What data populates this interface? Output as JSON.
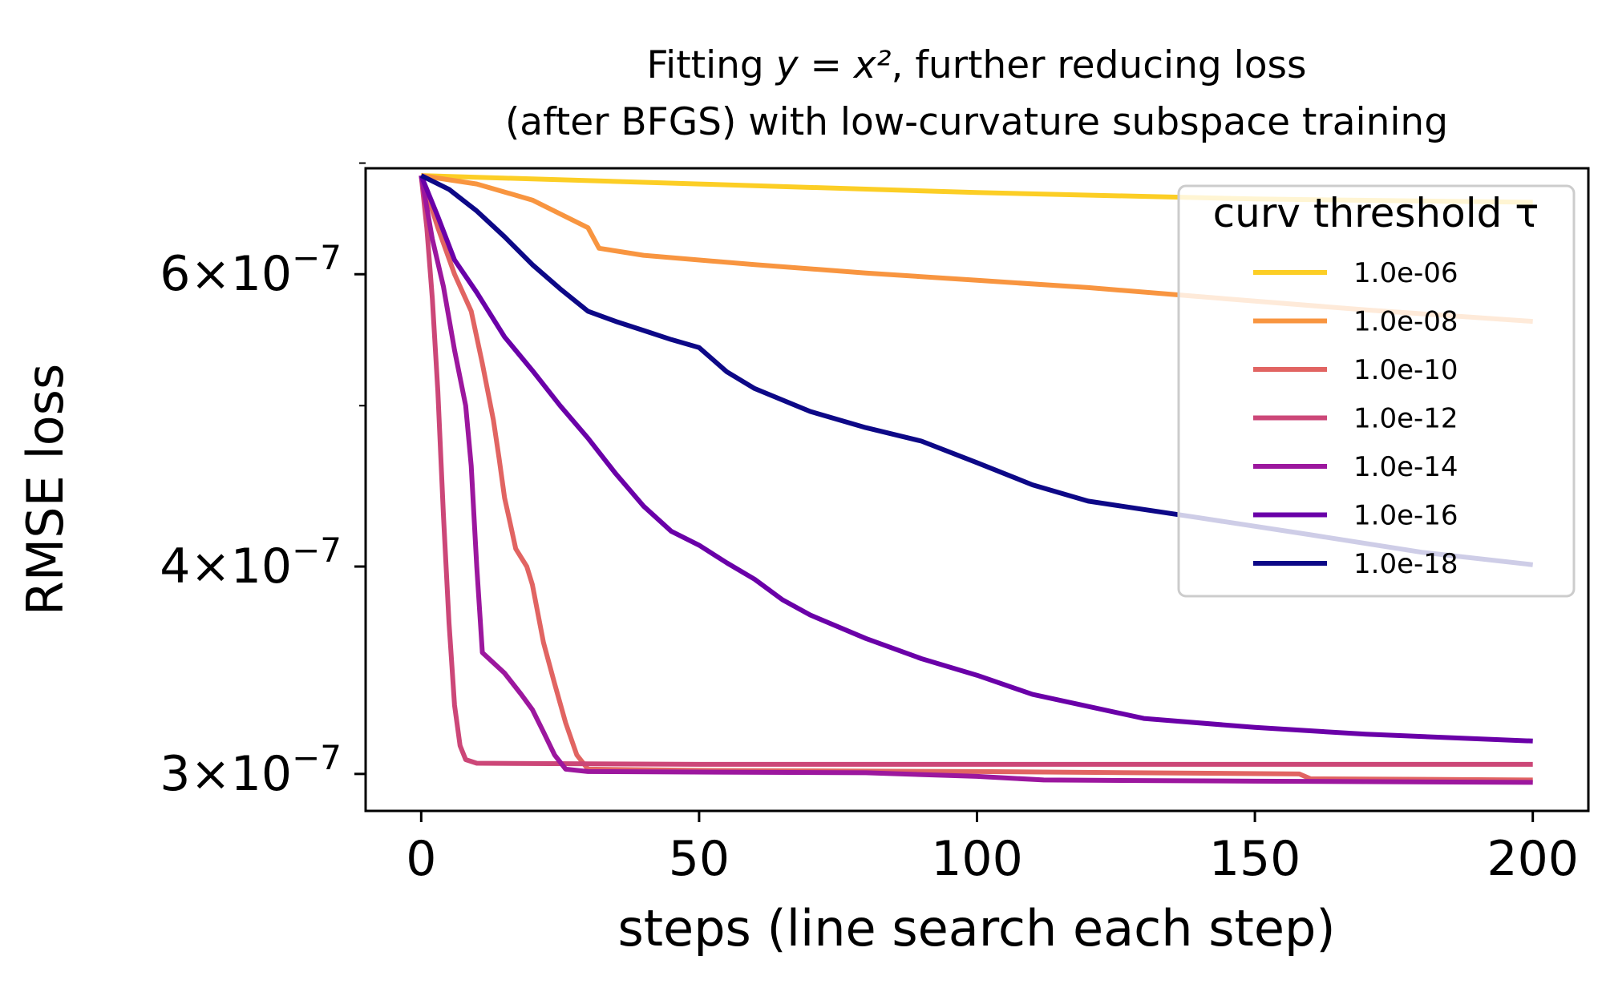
{
  "chart_data": {
    "type": "line",
    "title": "Fitting y = x², further reducing loss (after BFGS) with low-curvature subspace training",
    "title_line1_prefix": "Fitting ",
    "title_line1_math": "y = x²",
    "title_line1_suffix": ", further reducing loss",
    "title_line2": "(after BFGS) with low-curvature subspace training",
    "xlabel": "steps (line search each step)",
    "ylabel": "RMSE loss",
    "yscale": "log",
    "xlim": [
      -10,
      210
    ],
    "ylim": [
      2.85e-07,
      6.95e-07
    ],
    "x_ticks": [
      0,
      50,
      100,
      150,
      200
    ],
    "x_tick_labels": [
      "0",
      "50",
      "100",
      "150",
      "200"
    ],
    "y_ticks": [
      3e-07,
      4e-07,
      6e-07
    ],
    "y_tick_mantissas": [
      "3",
      "4",
      "6"
    ],
    "y_tick_base": "10",
    "y_tick_exponent": "−7",
    "y_tick_times": "×",
    "y_minor_ticks": [
      5e-07,
      7e-07
    ],
    "legend": {
      "title": "curv threshold τ",
      "position": "upper right"
    },
    "series": [
      {
        "name": "1.0e-06",
        "color": "#fcce25",
        "points": [
          [
            0,
            6.88e-07
          ],
          [
            50,
            6.8e-07
          ],
          [
            100,
            6.72e-07
          ],
          [
            150,
            6.66e-07
          ],
          [
            200,
            6.63e-07
          ]
        ]
      },
      {
        "name": "1.0e-08",
        "color": "#f89540",
        "points": [
          [
            0,
            6.88e-07
          ],
          [
            10,
            6.8e-07
          ],
          [
            20,
            6.65e-07
          ],
          [
            30,
            6.4e-07
          ],
          [
            32,
            6.22e-07
          ],
          [
            40,
            6.16e-07
          ],
          [
            60,
            6.08e-07
          ],
          [
            80,
            6.01e-07
          ],
          [
            100,
            5.95e-07
          ],
          [
            120,
            5.89e-07
          ],
          [
            150,
            5.78e-07
          ],
          [
            170,
            5.71e-07
          ],
          [
            200,
            5.62e-07
          ]
        ]
      },
      {
        "name": "1.0e-10",
        "color": "#e16462",
        "points": [
          [
            0,
            6.88e-07
          ],
          [
            3,
            6.4e-07
          ],
          [
            6,
            6e-07
          ],
          [
            9,
            5.7e-07
          ],
          [
            11,
            5.3e-07
          ],
          [
            13,
            4.9e-07
          ],
          [
            14,
            4.65e-07
          ],
          [
            15,
            4.4e-07
          ],
          [
            16,
            4.25e-07
          ],
          [
            17,
            4.1e-07
          ],
          [
            19,
            4e-07
          ],
          [
            20,
            3.9e-07
          ],
          [
            22,
            3.6e-07
          ],
          [
            24,
            3.4e-07
          ],
          [
            26,
            3.22e-07
          ],
          [
            28,
            3.08e-07
          ],
          [
            30,
            3.02e-07
          ],
          [
            50,
            3.015e-07
          ],
          [
            100,
            3.01e-07
          ],
          [
            158,
            3e-07
          ],
          [
            160,
            2.98e-07
          ],
          [
            200,
            2.975e-07
          ]
        ]
      },
      {
        "name": "1.0e-12",
        "color": "#cc4778",
        "points": [
          [
            0,
            6.88e-07
          ],
          [
            1,
            6.4e-07
          ],
          [
            2,
            5.8e-07
          ],
          [
            3,
            5.1e-07
          ],
          [
            4,
            4.3e-07
          ],
          [
            5,
            3.7e-07
          ],
          [
            6,
            3.3e-07
          ],
          [
            7,
            3.12e-07
          ],
          [
            8,
            3.06e-07
          ],
          [
            10,
            3.045e-07
          ],
          [
            50,
            3.04e-07
          ],
          [
            100,
            3.04e-07
          ],
          [
            150,
            3.04e-07
          ],
          [
            200,
            3.04e-07
          ]
        ]
      },
      {
        "name": "1.0e-14",
        "color": "#9c179e",
        "points": [
          [
            0,
            6.88e-07
          ],
          [
            2,
            6.3e-07
          ],
          [
            4,
            5.9e-07
          ],
          [
            6,
            5.4e-07
          ],
          [
            8,
            5e-07
          ],
          [
            9,
            4.6e-07
          ],
          [
            10,
            4e-07
          ],
          [
            11,
            3.55e-07
          ],
          [
            13,
            3.5e-07
          ],
          [
            15,
            3.45e-07
          ],
          [
            18,
            3.35e-07
          ],
          [
            20,
            3.28e-07
          ],
          [
            22,
            3.18e-07
          ],
          [
            24,
            3.08e-07
          ],
          [
            26,
            3.02e-07
          ],
          [
            30,
            3.01e-07
          ],
          [
            80,
            3.005e-07
          ],
          [
            100,
            2.99e-07
          ],
          [
            112,
            2.975e-07
          ],
          [
            150,
            2.97e-07
          ],
          [
            200,
            2.965e-07
          ]
        ]
      },
      {
        "name": "1.0e-16",
        "color": "#6a00a8",
        "points": [
          [
            0,
            6.88e-07
          ],
          [
            3,
            6.5e-07
          ],
          [
            6,
            6.12e-07
          ],
          [
            10,
            5.85e-07
          ],
          [
            15,
            5.5e-07
          ],
          [
            20,
            5.25e-07
          ],
          [
            25,
            5e-07
          ],
          [
            30,
            4.78e-07
          ],
          [
            35,
            4.55e-07
          ],
          [
            40,
            4.35e-07
          ],
          [
            45,
            4.2e-07
          ],
          [
            50,
            4.12e-07
          ],
          [
            55,
            4.02e-07
          ],
          [
            60,
            3.93e-07
          ],
          [
            65,
            3.82e-07
          ],
          [
            70,
            3.74e-07
          ],
          [
            80,
            3.62e-07
          ],
          [
            90,
            3.52e-07
          ],
          [
            100,
            3.44e-07
          ],
          [
            110,
            3.35e-07
          ],
          [
            130,
            3.24e-07
          ],
          [
            150,
            3.2e-07
          ],
          [
            170,
            3.17e-07
          ],
          [
            200,
            3.14e-07
          ]
        ]
      },
      {
        "name": "1.0e-18",
        "color": "#0d0887",
        "points": [
          [
            0,
            6.88e-07
          ],
          [
            5,
            6.75e-07
          ],
          [
            10,
            6.55e-07
          ],
          [
            15,
            6.32e-07
          ],
          [
            20,
            6.08e-07
          ],
          [
            25,
            5.88e-07
          ],
          [
            30,
            5.7e-07
          ],
          [
            35,
            5.62e-07
          ],
          [
            40,
            5.55e-07
          ],
          [
            45,
            5.48e-07
          ],
          [
            50,
            5.42e-07
          ],
          [
            55,
            5.24e-07
          ],
          [
            60,
            5.12e-07
          ],
          [
            70,
            4.96e-07
          ],
          [
            80,
            4.85e-07
          ],
          [
            90,
            4.76e-07
          ],
          [
            100,
            4.62e-07
          ],
          [
            110,
            4.48e-07
          ],
          [
            120,
            4.38e-07
          ],
          [
            140,
            4.28e-07
          ],
          [
            160,
            4.18e-07
          ],
          [
            180,
            4.08e-07
          ],
          [
            200,
            4.01e-07
          ]
        ]
      }
    ]
  }
}
